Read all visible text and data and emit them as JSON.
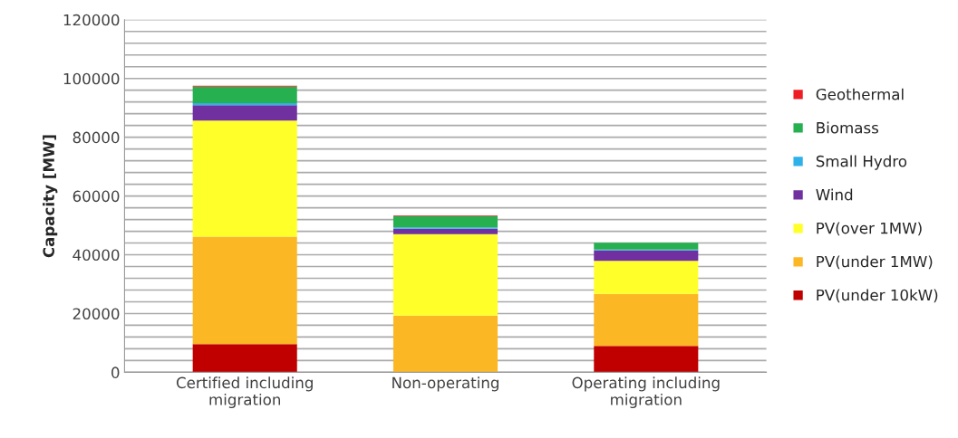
{
  "chart_data": {
    "type": "bar",
    "stacked": true,
    "ylabel": "Capacity [MW]",
    "categories": [
      "Certified including migration",
      "Non-operating",
      "Operating including migration"
    ],
    "series": [
      {
        "name": "PV(under 10kW)",
        "color": "#c00000",
        "values": [
          9600,
          0,
          9000
        ]
      },
      {
        "name": "PV(under 1MW)",
        "color": "#fbb724",
        "values": [
          36600,
          19300,
          17700
        ]
      },
      {
        "name": "PV(over 1MW)",
        "color": "#ffff2a",
        "values": [
          39500,
          27700,
          11200
        ]
      },
      {
        "name": "Wind",
        "color": "#7030a0",
        "values": [
          5200,
          1900,
          3600
        ]
      },
      {
        "name": "Small Hydro",
        "color": "#2eb0e8",
        "values": [
          700,
          400,
          300
        ]
      },
      {
        "name": "Biomass",
        "color": "#27b050",
        "values": [
          5600,
          3900,
          2300
        ]
      },
      {
        "name": "Geothermal",
        "color": "#ee1c25",
        "values": [
          300,
          200,
          null
        ]
      }
    ],
    "ylim": [
      0,
      120000
    ],
    "yticks": [
      0,
      {
        "value": 4000,
        "label": null
      },
      {
        "value": 8000,
        "label": null
      },
      {
        "value": 12000,
        "label": null
      },
      {
        "value": 16000,
        "label": null
      },
      20000,
      {
        "value": 24000,
        "label": null
      },
      {
        "value": 28000,
        "label": null
      },
      {
        "value": 32000,
        "label": null
      },
      {
        "value": 36000,
        "label": null
      },
      40000,
      {
        "value": 44000,
        "label": null
      },
      {
        "value": 48000,
        "label": null
      },
      {
        "value": 52000,
        "label": null
      },
      {
        "value": 56000,
        "label": null
      },
      60000,
      {
        "value": 64000,
        "label": null
      },
      {
        "value": 68000,
        "label": null
      },
      {
        "value": 72000,
        "label": null
      },
      {
        "value": 76000,
        "label": null
      },
      80000,
      {
        "value": 84000,
        "label": null
      },
      {
        "value": 88000,
        "label": null
      },
      {
        "value": 92000,
        "label": null
      },
      {
        "value": 96000,
        "label": null
      },
      100000,
      {
        "value": 104000,
        "label": null
      },
      {
        "value": 108000,
        "label": null
      },
      {
        "value": 112000,
        "label": null
      },
      {
        "value": 116000,
        "label": null
      },
      120000
    ],
    "grid": "y",
    "legend": "right"
  }
}
